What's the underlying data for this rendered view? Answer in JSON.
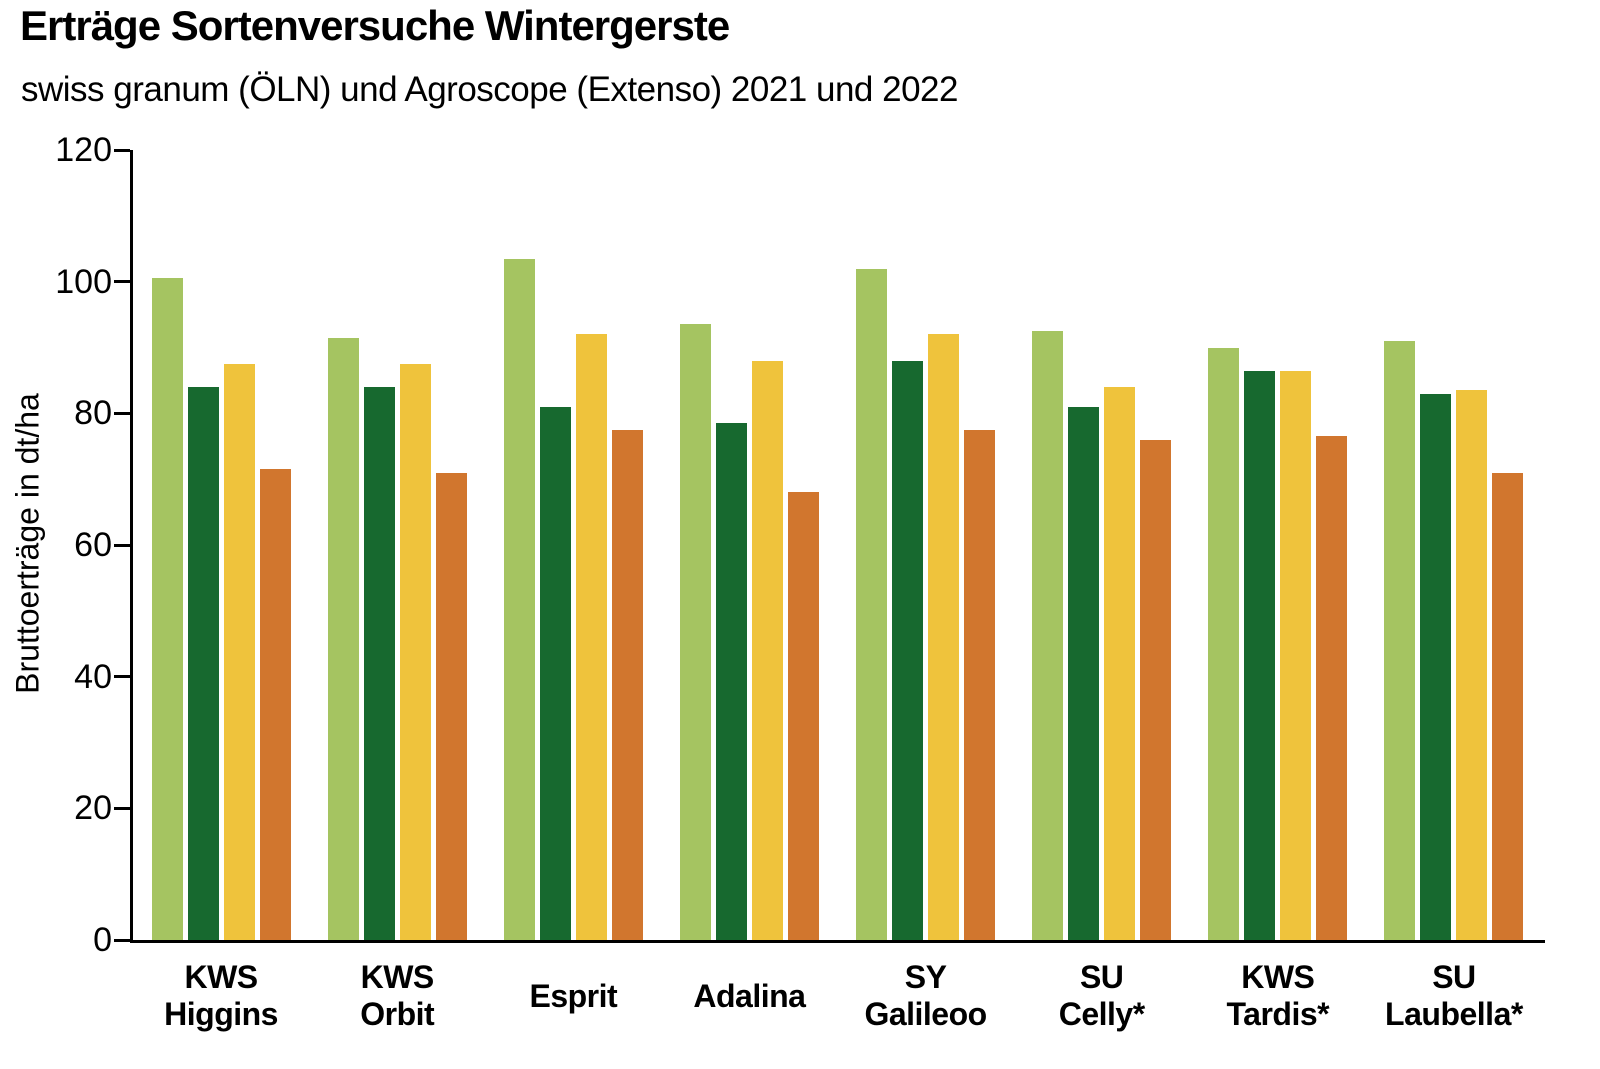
{
  "chart_data": {
    "type": "bar",
    "title": "Erträge Sortenversuche Wintergerste",
    "subtitle": "swiss granum (ÖLN) und Agroscope (Extenso) 2021 und 2022",
    "ylabel": "Bruttoerträge in dt/ha",
    "xlabel": "",
    "ylim": [
      0,
      120
    ],
    "yticks": [
      0,
      20,
      40,
      60,
      80,
      100,
      120
    ],
    "grid": false,
    "legend_position": "none",
    "categories": [
      [
        "KWS",
        "Higgins"
      ],
      [
        "KWS",
        "Orbit"
      ],
      [
        "Esprit"
      ],
      [
        "Adalina"
      ],
      [
        "SY",
        "Galileoo"
      ],
      [
        "SU",
        "Celly*"
      ],
      [
        "KWS",
        "Tardis*"
      ],
      [
        "SU",
        "Laubella*"
      ]
    ],
    "series": [
      {
        "name": "series-light-green",
        "color": "#a5c461",
        "values": [
          100.5,
          91.5,
          103.5,
          93.5,
          102,
          92.5,
          90,
          91
        ]
      },
      {
        "name": "series-dark-green",
        "color": "#17692f",
        "values": [
          84,
          84,
          81,
          78.5,
          88,
          81,
          86.5,
          83
        ]
      },
      {
        "name": "series-yellow",
        "color": "#efc33c",
        "values": [
          87.5,
          87.5,
          92,
          88,
          92,
          84,
          86.5,
          83.5
        ]
      },
      {
        "name": "series-orange",
        "color": "#d1762e",
        "values": [
          71.5,
          71,
          77.5,
          68,
          77.5,
          76,
          76.5,
          71
        ]
      }
    ]
  },
  "colors": {
    "background": "#ffffff",
    "axis": "#000000",
    "text": "#000000"
  }
}
